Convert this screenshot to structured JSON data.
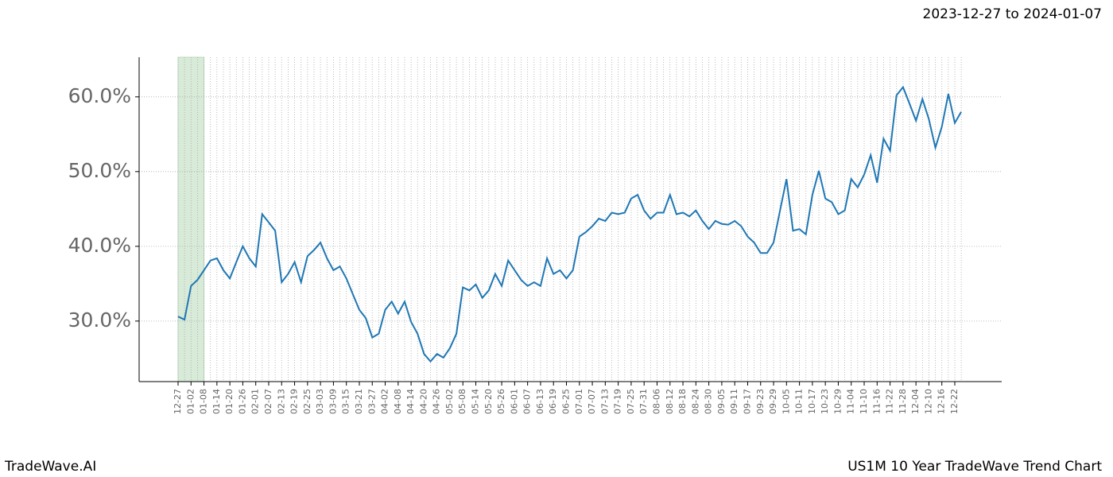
{
  "chart_data": {
    "type": "line",
    "title": "2023-12-27 to 2024-01-07",
    "footer_left": "TradeWave.AI",
    "footer_right": "US1M 10 Year TradeWave Trend Chart",
    "x": [
      "12-27",
      "12-30",
      "01-02",
      "01-05",
      "01-08",
      "01-11",
      "01-14",
      "01-17",
      "01-20",
      "01-23",
      "01-26",
      "01-29",
      "02-01",
      "02-04",
      "02-07",
      "02-10",
      "02-13",
      "02-16",
      "02-19",
      "02-22",
      "02-25",
      "02-28",
      "03-03",
      "03-06",
      "03-09",
      "03-12",
      "03-15",
      "03-18",
      "03-21",
      "03-24",
      "03-27",
      "03-30",
      "04-02",
      "04-05",
      "04-08",
      "04-11",
      "04-14",
      "04-17",
      "04-20",
      "04-23",
      "04-26",
      "04-29",
      "05-02",
      "05-05",
      "05-08",
      "05-11",
      "05-14",
      "05-17",
      "05-20",
      "05-23",
      "05-26",
      "05-29",
      "06-01",
      "06-04",
      "06-07",
      "06-10",
      "06-13",
      "06-16",
      "06-19",
      "06-22",
      "06-25",
      "06-28",
      "07-01",
      "07-04",
      "07-07",
      "07-10",
      "07-13",
      "07-16",
      "07-19",
      "07-22",
      "07-25",
      "07-28",
      "07-31",
      "08-03",
      "08-06",
      "08-09",
      "08-12",
      "08-15",
      "08-18",
      "08-21",
      "08-24",
      "08-27",
      "08-30",
      "09-02",
      "09-05",
      "09-08",
      "09-11",
      "09-14",
      "09-17",
      "09-20",
      "09-23",
      "09-26",
      "09-29",
      "10-02",
      "10-05",
      "10-08",
      "10-11",
      "10-14",
      "10-17",
      "10-20",
      "10-23",
      "10-26",
      "10-29",
      "11-01",
      "11-04",
      "11-07",
      "11-10",
      "11-13",
      "11-16",
      "11-19",
      "11-22",
      "11-25",
      "11-28",
      "12-01",
      "12-04",
      "12-07",
      "12-10",
      "12-13",
      "12-16",
      "12-19",
      "12-22",
      "12-25"
    ],
    "series": [
      {
        "color": "#1f77b4",
        "values": [
          30.6,
          30.2,
          34.7,
          35.5,
          36.8,
          38.1,
          38.4,
          36.8,
          35.7,
          37.9,
          40.0,
          38.4,
          37.3,
          44.3,
          43.2,
          42.1,
          35.2,
          36.3,
          37.9,
          35.2,
          38.7,
          39.5,
          40.5,
          38.4,
          36.8,
          37.3,
          35.7,
          33.6,
          31.5,
          30.4,
          27.8,
          28.3,
          31.5,
          32.6,
          31.0,
          32.6,
          29.9,
          28.3,
          25.6,
          24.6,
          25.6,
          25.1,
          26.4,
          28.3,
          34.5,
          34.1,
          34.9,
          33.1,
          34.1,
          36.3,
          34.7,
          38.1,
          36.8,
          35.5,
          34.7,
          35.2,
          34.7,
          38.4,
          36.3,
          36.8,
          35.7,
          36.8,
          41.3,
          41.9,
          42.7,
          43.7,
          43.4,
          44.5,
          44.3,
          44.5,
          46.4,
          46.9,
          44.8,
          43.7,
          44.5,
          44.5,
          46.9,
          44.3,
          44.5,
          44.0,
          44.8,
          43.4,
          42.3,
          43.4,
          43.0,
          42.9,
          43.4,
          42.7,
          41.3,
          40.5,
          39.1,
          39.1,
          40.5,
          44.8,
          49.0,
          42.1,
          42.3,
          41.6,
          46.9,
          50.1,
          46.4,
          45.9,
          44.3,
          44.8,
          49.0,
          47.9,
          49.6,
          52.2,
          48.5,
          54.4,
          52.8,
          60.2,
          61.3,
          59.1,
          56.8,
          59.7,
          57.0,
          53.2,
          56.0,
          60.4,
          56.5,
          58.0
        ]
      }
    ],
    "ylim": [
      21.9,
      65.3
    ],
    "yticks": [
      {
        "value": 30,
        "label": "30.0%"
      },
      {
        "value": 40,
        "label": "40.0%"
      },
      {
        "value": 50,
        "label": "50.0%"
      },
      {
        "value": 60,
        "label": "60.0%"
      }
    ],
    "xtick_every": 2,
    "highlight": [
      "12-27",
      "01-08"
    ],
    "highlight_color": "#d8ead8",
    "grid": true
  }
}
